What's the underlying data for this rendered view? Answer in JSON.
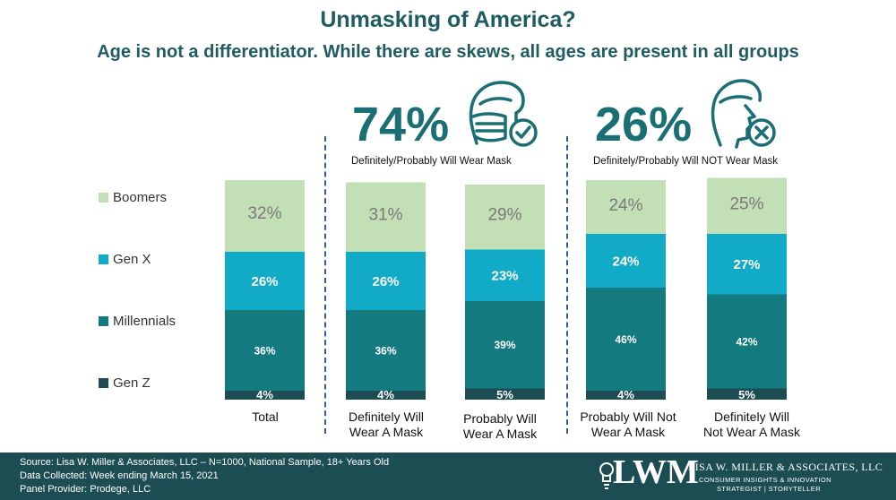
{
  "title": "Unmasking of America?",
  "subtitle": "Age is not a differentiator. While there are skews, all ages are present in all groups",
  "groups": [
    {
      "pct": "74%",
      "label": "Definitely/Probably Will Wear Mask",
      "icon": "masked-face-check-icon"
    },
    {
      "pct": "26%",
      "label": "Definitely/Probably Will NOT Wear Mask",
      "icon": "unmasked-face-x-icon"
    }
  ],
  "legend": [
    "Boomers",
    "Gen X",
    "Millennials",
    "Gen Z"
  ],
  "colors": {
    "Boomers": "#c2dfb6",
    "Gen X": "#11aac7",
    "Millennials": "#137a80",
    "Gen Z": "#1d4d52"
  },
  "chart_data": {
    "type": "bar",
    "stacked": true,
    "categories": [
      "Total",
      "Definitely Will Wear A Mask",
      "Probably Will Wear A Mask",
      "Probably Will Not Wear A Mask",
      "Definitely Will Not Wear A Mask"
    ],
    "series": [
      {
        "name": "Gen Z",
        "values": [
          4,
          4,
          5,
          4,
          5
        ]
      },
      {
        "name": "Millennials",
        "values": [
          36,
          36,
          39,
          46,
          42
        ]
      },
      {
        "name": "Gen X",
        "values": [
          26,
          26,
          23,
          24,
          27
        ]
      },
      {
        "name": "Boomers",
        "values": [
          32,
          31,
          29,
          24,
          25
        ]
      }
    ],
    "value_suffix": "%"
  },
  "category_labels": [
    [
      "Total"
    ],
    [
      "Definitely Will",
      "Wear A Mask"
    ],
    [
      "Probably Will",
      "Wear A Mask"
    ],
    [
      "Probably Will Not",
      "Wear A Mask"
    ],
    [
      "Definitely Will",
      "Not Wear A Mask"
    ]
  ],
  "footer": {
    "source": "Source: Lisa W. Miller & Associates, LLC  –  N=1000,  National Sample, 18+ Years Old",
    "collected": "Data Collected: Week ending March 15, 2021",
    "panel": "Panel Provider:  Prodege, LLC",
    "logo": "LWM",
    "company": "LISA W. MILLER & ASSOCIATES, LLC",
    "tagline1": "CONSUMER INSIGHTS & INNOVATION",
    "tagline2": "STRATEGIST | STORYTELLER"
  }
}
